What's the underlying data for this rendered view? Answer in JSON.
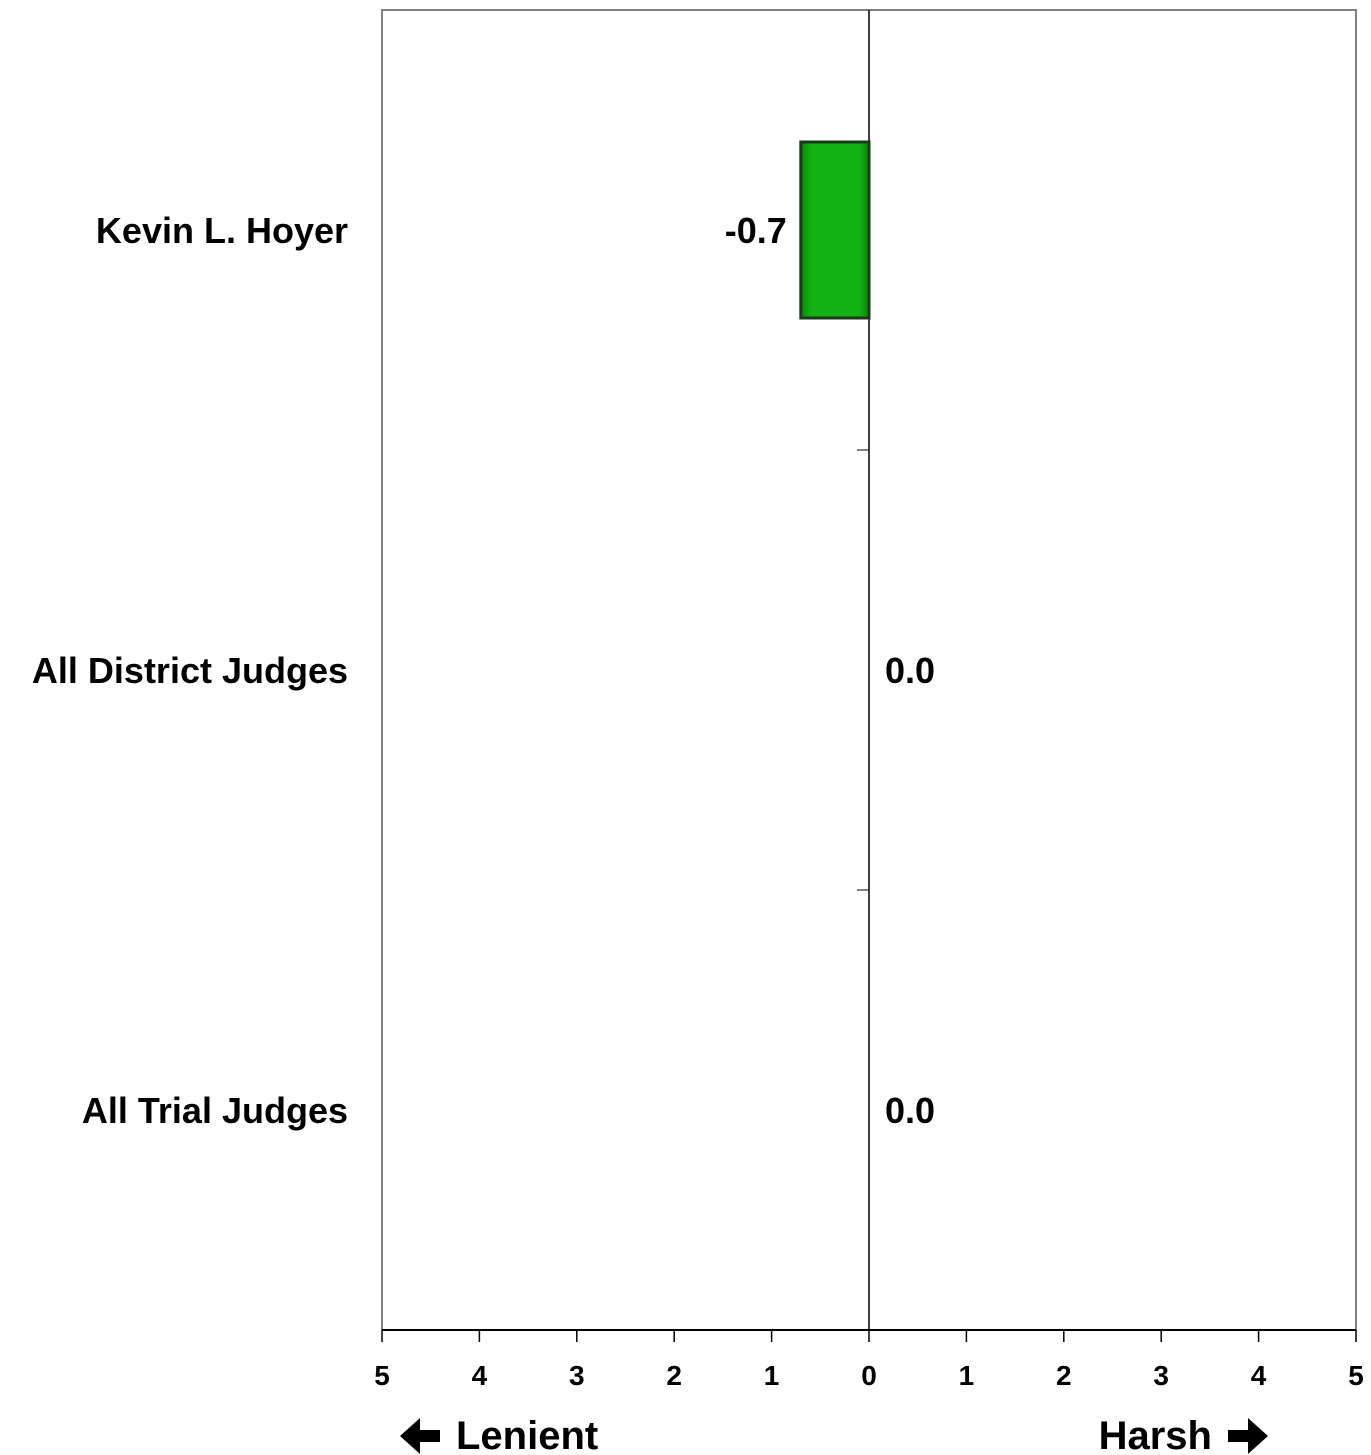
{
  "chart_data": {
    "type": "bar",
    "orientation": "horizontal",
    "categories": [
      "Kevin L. Hoyer",
      "All District Judges",
      "All Trial Judges"
    ],
    "values": [
      -0.7,
      0.0,
      0.0
    ],
    "data_labels": [
      "-0.7",
      "0.0",
      "0.0"
    ],
    "xlim": [
      -5,
      5
    ],
    "x_ticks": [
      -5,
      -4,
      -3,
      -2,
      -1,
      0,
      1,
      2,
      3,
      4,
      5
    ],
    "x_tick_labels": [
      "5",
      "4",
      "3",
      "2",
      "1",
      "0",
      "1",
      "2",
      "3",
      "4",
      "5"
    ],
    "direction_labels": {
      "left": "Lenient",
      "right": "Harsh"
    },
    "bar_color": "#0ea80e",
    "grid": false,
    "legend": "none"
  }
}
